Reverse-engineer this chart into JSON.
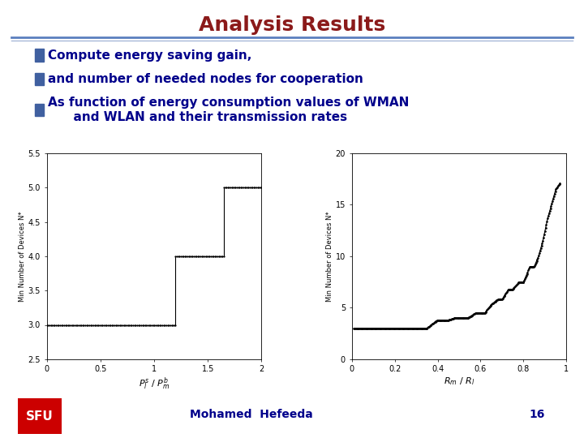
{
  "title": "Analysis Results",
  "title_color": "#8B1A1A",
  "title_fontsize": 18,
  "bg_color": "#FFFFFF",
  "header_line_color1": "#5B7FBF",
  "header_line_color2": "#A8B8D8",
  "bullet_color": "#4060A0",
  "bullet_text_color": "#00008B",
  "bullets": [
    "Compute energy saving gain,",
    "and number of needed nodes for cooperation",
    "As function of energy consumption values of WMAN\n      and WLAN and their transmission rates"
  ],
  "bullet_fontsize": 11,
  "footer_text": "Mohamed  Hefeeda",
  "footer_page": "16",
  "footer_fontsize": 10,
  "sfu_color": "#CC0000",
  "plot1": {
    "xlabel": "$P_l^s \\ / \\ P_m^b$",
    "ylabel": "Min Number of Devices N*",
    "xlim": [
      0,
      2
    ],
    "ylim": [
      2.5,
      5.5
    ],
    "yticks": [
      2.5,
      3.0,
      3.5,
      4.0,
      4.5,
      5.0,
      5.5
    ],
    "xticks": [
      0,
      0.5,
      1,
      1.5,
      2
    ],
    "step_x": [
      0.0,
      1.2,
      1.2,
      1.65,
      1.65,
      2.0
    ],
    "step_y": [
      3.0,
      3.0,
      4.0,
      4.0,
      5.0,
      5.0
    ]
  },
  "plot2": {
    "xlabel": "$R_m \\ / \\ R_l$",
    "ylabel": "Min Number of Devices N*",
    "xlim": [
      0,
      1
    ],
    "ylim": [
      0,
      20
    ],
    "yticks": [
      0,
      5,
      10,
      15,
      20
    ],
    "xticks": [
      0,
      0.2,
      0.4,
      0.6,
      0.8,
      1.0
    ]
  }
}
